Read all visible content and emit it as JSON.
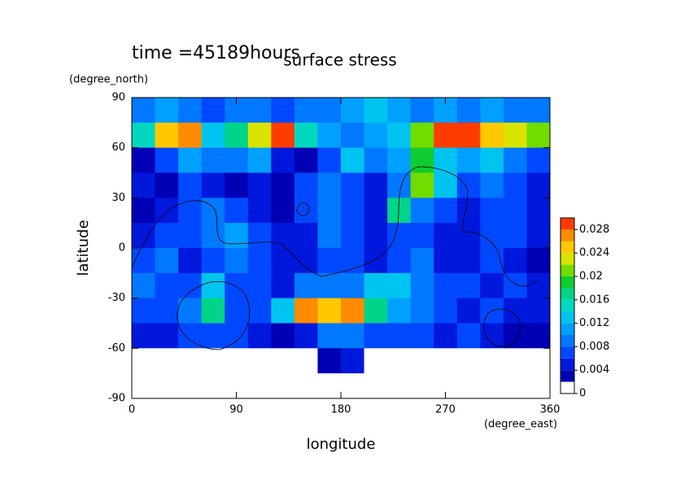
{
  "chart_data": {
    "type": "heatmap",
    "title": "surface stress",
    "subtitle": "time =45189hours",
    "x_label": "longitude",
    "y_label": "latitude",
    "x_unit": "(degree_east)",
    "y_unit": "(degree_north)",
    "x": [
      10,
      30,
      50,
      70,
      90,
      110,
      130,
      150,
      170,
      190,
      210,
      230,
      250,
      270,
      290,
      310,
      330,
      350
    ],
    "y": [
      82.5,
      67.5,
      52.5,
      37.5,
      22.5,
      7.5,
      -7.5,
      -22.5,
      -37.5,
      -52.5,
      -67.5,
      -82.5
    ],
    "z": [
      [
        0.008,
        0.01,
        0.008,
        0.006,
        0.008,
        0.008,
        0.006,
        0.008,
        0.008,
        0.01,
        0.012,
        0.01,
        0.008,
        0.01,
        0.008,
        0.01,
        0.008,
        0.008
      ],
      [
        0.014,
        0.024,
        0.026,
        0.012,
        0.016,
        0.022,
        0.028,
        0.014,
        0.01,
        0.008,
        0.01,
        0.012,
        0.02,
        0.028,
        0.03,
        0.024,
        0.022,
        0.02
      ],
      [
        0.002,
        0.006,
        0.01,
        0.008,
        0.008,
        0.01,
        0.004,
        0.002,
        0.006,
        0.012,
        0.008,
        0.01,
        0.018,
        0.012,
        0.01,
        0.012,
        0.008,
        0.006
      ],
      [
        0.004,
        0.002,
        0.006,
        0.004,
        0.002,
        0.004,
        0.002,
        0.006,
        0.008,
        0.006,
        0.004,
        0.008,
        0.02,
        0.012,
        0.006,
        0.008,
        0.006,
        0.004
      ],
      [
        0.002,
        0.004,
        0.006,
        0.008,
        0.006,
        0.004,
        0.002,
        0.006,
        0.008,
        0.006,
        0.004,
        0.016,
        0.008,
        0.006,
        0.004,
        0.006,
        0.006,
        0.004
      ],
      [
        0.004,
        0.006,
        0.006,
        0.008,
        0.01,
        0.006,
        0.004,
        0.004,
        0.008,
        0.006,
        0.004,
        0.006,
        0.006,
        0.004,
        0.004,
        0.006,
        0.006,
        0.004
      ],
      [
        0.006,
        0.008,
        0.004,
        0.006,
        0.008,
        0.006,
        0.004,
        0.004,
        0.006,
        0.006,
        0.004,
        0.006,
        0.008,
        0.004,
        0.004,
        0.006,
        0.004,
        0.002
      ],
      [
        0.008,
        0.006,
        0.006,
        0.012,
        0.006,
        0.006,
        0.004,
        0.008,
        0.008,
        0.008,
        0.012,
        0.012,
        0.008,
        0.006,
        0.006,
        0.004,
        0.006,
        0.004
      ],
      [
        0.006,
        0.006,
        0.008,
        0.016,
        0.006,
        0.006,
        0.012,
        0.026,
        0.024,
        0.026,
        0.016,
        0.01,
        0.008,
        0.006,
        0.004,
        0.006,
        0.004,
        0.004
      ],
      [
        0.004,
        0.004,
        0.006,
        0.006,
        0.006,
        0.004,
        0.002,
        0.004,
        0.008,
        0.008,
        0.006,
        0.006,
        0.006,
        0.004,
        0.006,
        0.004,
        0.002,
        0.002
      ],
      [
        0,
        0,
        0,
        0,
        0,
        0,
        0,
        0,
        0.002,
        0.004,
        0,
        0,
        0,
        0,
        0,
        0,
        0,
        0
      ],
      [
        0,
        0,
        0,
        0,
        0,
        0,
        0,
        0,
        0,
        0,
        0,
        0,
        0,
        0,
        0,
        0,
        0,
        0
      ]
    ],
    "xlim": [
      0,
      360
    ],
    "ylim": [
      -90,
      90
    ],
    "xticks": [
      0,
      90,
      180,
      270,
      360
    ],
    "yticks": [
      -90,
      -60,
      -30,
      0,
      30,
      60,
      90
    ],
    "levels": [
      0,
      0.002,
      0.004,
      0.006,
      0.008,
      0.01,
      0.012,
      0.014,
      0.016,
      0.018,
      0.02,
      0.022,
      0.024,
      0.026,
      0.028,
      0.03
    ],
    "colors": [
      "#ffffff",
      "#0000b4",
      "#0018dc",
      "#0048ff",
      "#0078ff",
      "#00a0ff",
      "#00c4f0",
      "#00d8c0",
      "#00d488",
      "#10cc30",
      "#70dc00",
      "#d8e400",
      "#ffc800",
      "#ff8c00",
      "#ff3c00"
    ],
    "colorbar_ticks": [
      0,
      0.004,
      0.008,
      0.012,
      0.016,
      0.02,
      0.024,
      0.028
    ]
  }
}
